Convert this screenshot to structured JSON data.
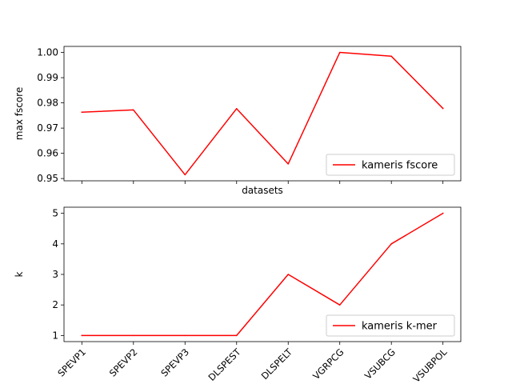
{
  "chart_data": [
    {
      "type": "line",
      "categories": [
        "SPEVP1",
        "SPEVP2",
        "SPEVP3",
        "DLSPEST",
        "DLSPELT",
        "VGRPCG",
        "VSUBCG",
        "VSUBPOL"
      ],
      "series": [
        {
          "name": "kameris fscore",
          "values": [
            0.9763,
            0.9772,
            0.9515,
            0.9777,
            0.9558,
            1.0,
            0.9985,
            0.9778
          ],
          "color": "#ff0000"
        }
      ],
      "xlabel": "datasets",
      "ylabel": "max fscore",
      "ylim": [
        0.9491,
        1.0024
      ],
      "yticks": [
        0.95,
        0.96,
        0.97,
        0.98,
        0.99,
        1.0
      ],
      "ytick_labels": [
        "0.95",
        "0.96",
        "0.97",
        "0.98",
        "0.99",
        "1.00"
      ],
      "show_xtick_labels": false,
      "legend_position": "lower-right",
      "grid": false
    },
    {
      "type": "line",
      "categories": [
        "SPEVP1",
        "SPEVP2",
        "SPEVP3",
        "DLSPEST",
        "DLSPELT",
        "VGRPCG",
        "VSUBCG",
        "VSUBPOL"
      ],
      "series": [
        {
          "name": "kameris k-mer",
          "values": [
            1,
            1,
            1,
            1,
            3,
            2,
            4,
            5
          ],
          "color": "#ff0000"
        }
      ],
      "xlabel": "",
      "ylabel": "k",
      "ylim": [
        0.8,
        5.2
      ],
      "yticks": [
        1,
        2,
        3,
        4,
        5
      ],
      "ytick_labels": [
        "1",
        "2",
        "3",
        "4",
        "5"
      ],
      "show_xtick_labels": true,
      "legend_position": "lower-right",
      "grid": false
    }
  ]
}
